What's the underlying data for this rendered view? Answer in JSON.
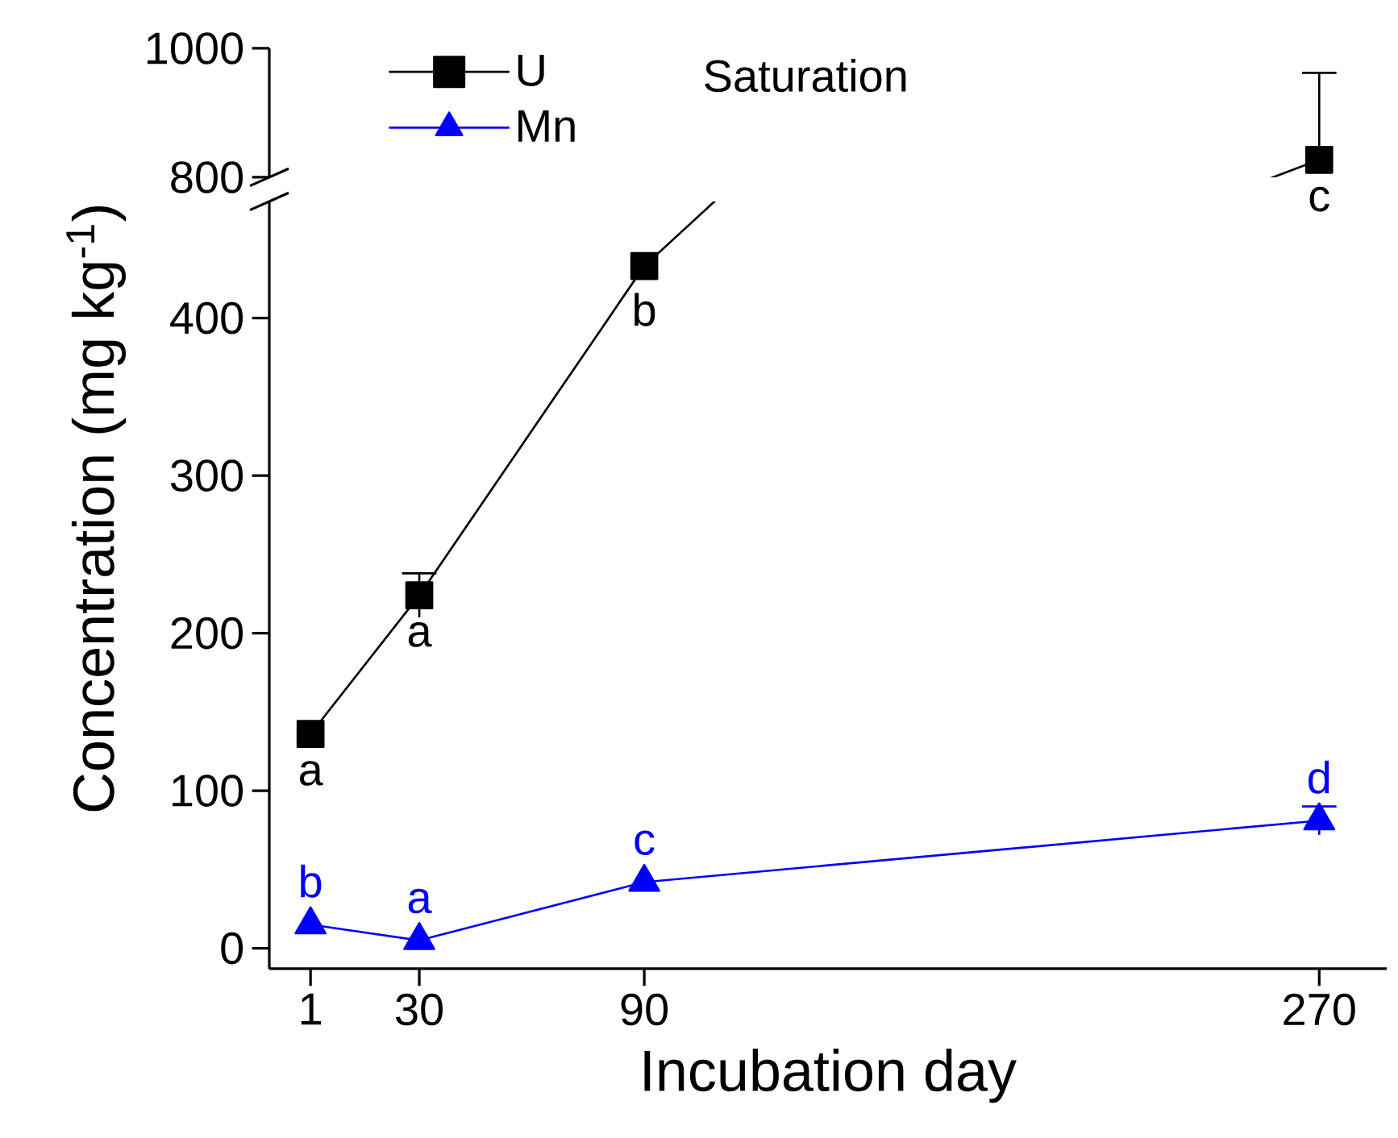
{
  "chart_data": [
    {
      "type": "line",
      "title": "Saturation",
      "xticks": [
        1,
        30,
        90,
        270
      ],
      "ylim": [
        800,
        1000
      ],
      "yticks": [
        800,
        1000
      ],
      "tick_labels": "y",
      "x": [
        270
      ],
      "series": [
        {
          "color": "#000000",
          "marker": "square",
          "values": [
            827
          ],
          "errors": [
            [
              827,
              962
            ]
          ]
        }
      ],
      "annotations": [
        {
          "text": "c",
          "x": 270,
          "y": 827
        }
      ]
    },
    {
      "type": "line",
      "xlabel": "Incubation day",
      "ylabel": "Concentration (mg kg$^{-1}$)",
      "xlim": [
        -10,
        288
      ],
      "ylim": [
        -13,
        474
      ],
      "xticks": [
        1,
        30,
        90,
        270
      ],
      "yticks": [
        0,
        100,
        200,
        300,
        400
      ],
      "legend": "top left",
      "x": [
        1,
        30,
        90,
        270
      ],
      "series": [
        {
          "name": "U",
          "color": "#000000",
          "marker": "square",
          "values": [
            136,
            224,
            433,
            null
          ],
          "errors": [
            null,
            14,
            null,
            null
          ]
        },
        {
          "name": "Mn",
          "color": "#0000ff",
          "marker": "triangle",
          "values": [
            15,
            5,
            42,
            81
          ],
          "errors": [
            null,
            null,
            null,
            9
          ]
        }
      ],
      "annotations": [
        {
          "text": "a",
          "x": 1,
          "y": 136
        },
        {
          "text": "a",
          "x": 30,
          "y": 224
        },
        {
          "text": "b",
          "x": 90,
          "y": 433
        },
        {
          "text": "b",
          "x": 1,
          "y": 15
        },
        {
          "text": "a",
          "x": 30,
          "y": 5
        },
        {
          "text": "c",
          "x": 90,
          "y": 42
        },
        {
          "text": "d",
          "x": 270,
          "y": 81
        }
      ]
    }
  ]
}
